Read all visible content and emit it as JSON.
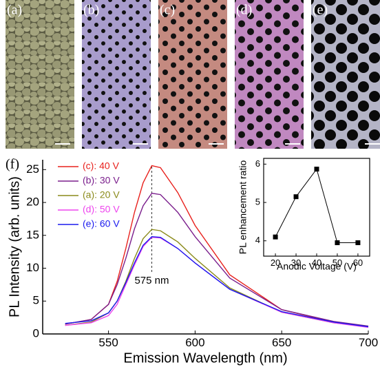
{
  "panels": {
    "labels": [
      "(a)",
      "(b)",
      "(c)",
      "(d)",
      "(e)",
      "(f)"
    ]
  },
  "chart_data": [
    {
      "type": "line",
      "xlabel": "Emission Wavelength (nm)",
      "ylabel": "PL Intensity (arb. units)",
      "x": [
        525,
        540,
        550,
        555,
        560,
        565,
        570,
        575,
        580,
        590,
        600,
        620,
        650,
        680,
        700
      ],
      "series": [
        {
          "name": "(c): 40 V",
          "color": "#e8201c",
          "values": [
            1.5,
            2.2,
            4.5,
            8,
            13,
            18.5,
            23,
            25.6,
            25.3,
            21.5,
            16.5,
            9,
            3.7,
            1.8,
            1.1
          ]
        },
        {
          "name": "(b): 30 V",
          "color": "#7a1e8c",
          "values": [
            1.5,
            2.2,
            4.5,
            7.5,
            11.5,
            16,
            19.5,
            21.4,
            21.2,
            18.5,
            14.8,
            8.5,
            3.7,
            1.9,
            1.2
          ]
        },
        {
          "name": "(a): 20 V",
          "color": "#8a8a1a",
          "values": [
            1.3,
            1.8,
            3.2,
            5,
            8,
            11.5,
            14.5,
            15.9,
            15.7,
            14,
            11.5,
            7,
            3.3,
            1.7,
            1.1
          ]
        },
        {
          "name": "(d): 50 V",
          "color": "#ee44ee",
          "values": [
            1.3,
            1.7,
            2.8,
            4.5,
            7.5,
            10.5,
            13.3,
            14.7,
            14.6,
            13,
            10.8,
            6.8,
            3.3,
            1.7,
            1.0
          ]
        },
        {
          "name": "(e): 60 V",
          "color": "#1a1aee",
          "values": [
            1.6,
            2,
            3.2,
            5,
            7.8,
            10.8,
            13.5,
            14.8,
            14.7,
            13,
            10.8,
            6.8,
            3.4,
            1.8,
            1.1
          ]
        }
      ],
      "xlim": [
        512,
        700
      ],
      "ylim": [
        0,
        26.5
      ],
      "xticks": [
        550,
        600,
        650,
        700
      ],
      "yticks": [
        0,
        5,
        10,
        15,
        20,
        25
      ],
      "annotation": {
        "text": "575 nm",
        "x": 575
      },
      "legend": "upper left"
    },
    {
      "type": "line",
      "xlabel": "Anodic Voltage (V)",
      "ylabel": "PL enhancement ratio",
      "x": [
        20,
        30,
        40,
        50,
        60
      ],
      "values": [
        4.1,
        5.15,
        5.87,
        3.95,
        3.95
      ],
      "color": "#000000",
      "markers": true,
      "xlim": [
        14.3,
        65.7
      ],
      "ylim": [
        3.6,
        6.15
      ],
      "xticks": [
        20,
        30,
        40,
        50,
        60
      ],
      "yticks": [
        4,
        5,
        6
      ]
    }
  ]
}
